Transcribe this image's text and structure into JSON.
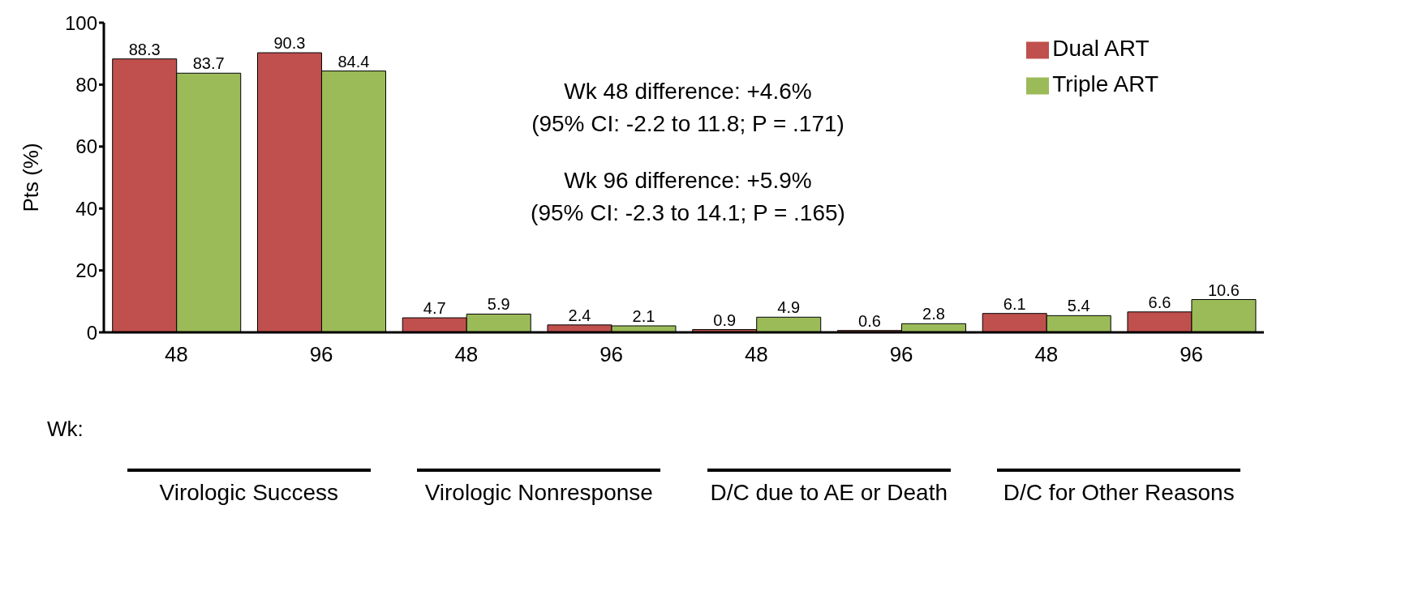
{
  "chart_data": {
    "type": "bar",
    "ylabel": "Pts (%)",
    "categories": [
      "48",
      "96",
      "48",
      "96",
      "48",
      "96",
      "48",
      "96"
    ],
    "series": [
      {
        "name": "Dual ART",
        "color": "#c0504d",
        "values": [
          88.3,
          90.3,
          4.7,
          2.4,
          0.9,
          0.6,
          6.1,
          6.6
        ]
      },
      {
        "name": "Triple ART",
        "color": "#9bbb59",
        "values": [
          83.7,
          84.4,
          5.9,
          2.1,
          4.9,
          2.8,
          5.4,
          10.6
        ]
      }
    ],
    "ylim": [
      0,
      100
    ],
    "yticks": [
      0,
      20,
      40,
      60,
      80,
      100
    ],
    "grid": false,
    "legend": "top right",
    "data_labels": true,
    "annotations": [
      "Wk 48 difference: +4.6%",
      "(95% CI: -2.2 to 11.8; P = .171)",
      "Wk 96 difference: +5.9%",
      "(95% CI: -2.3 to 14.1; P = .165)",
      "Wk:",
      "Virologic Success",
      "Virologic Nonresponse",
      "D/C due to AE or Death",
      "D/C for Other Reasons"
    ]
  }
}
